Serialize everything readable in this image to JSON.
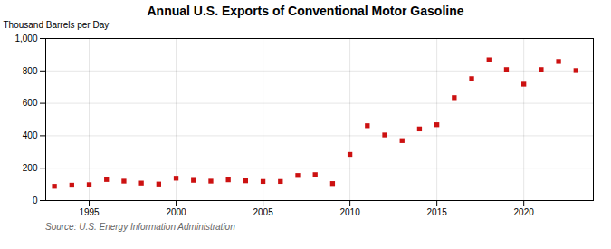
{
  "chart_data": {
    "type": "scatter",
    "title": "Annual U.S. Exports of Conventional Motor Gasoline",
    "ylabel": "Thousand Barrels per Day",
    "source": "Source: U.S. Energy Information Administration",
    "x": [
      1993,
      1994,
      1995,
      1996,
      1997,
      1998,
      1999,
      2000,
      2001,
      2002,
      2003,
      2004,
      2005,
      2006,
      2007,
      2008,
      2009,
      2010,
      2011,
      2012,
      2013,
      2014,
      2015,
      2016,
      2017,
      2018,
      2019,
      2020,
      2021,
      2022,
      2023
    ],
    "values": [
      88,
      95,
      98,
      130,
      120,
      108,
      102,
      138,
      125,
      120,
      128,
      122,
      118,
      118,
      155,
      160,
      105,
      285,
      462,
      405,
      370,
      442,
      468,
      635,
      752,
      868,
      808,
      718,
      808,
      858,
      802
    ],
    "color": "#cc1111",
    "marker": "square",
    "xlim": [
      1992.5,
      2024
    ],
    "xticks": [
      1995,
      2000,
      2005,
      2010,
      2015,
      2020
    ],
    "ylim": [
      0,
      1000
    ],
    "yticks": [
      0,
      200,
      400,
      600,
      800,
      {
        "value": 1000,
        "label": "1,000"
      }
    ],
    "grid": true
  }
}
